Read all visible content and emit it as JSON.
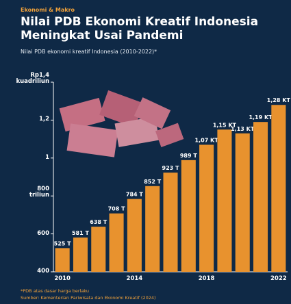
{
  "chart_data": {
    "type": "bar",
    "kicker": "Ekonomi & Makro",
    "title": "Nilai PDB Ekonomi Kreatif Indonesia Meningkat Usai Pandemi",
    "subtitle": "Nilai PDB ekonomi kreatif Indonesia (2010-2022)*",
    "categories": [
      "2010",
      null,
      null,
      null,
      "2014",
      null,
      null,
      null,
      "2018",
      null,
      null,
      null,
      "2022"
    ],
    "values": [
      525,
      581,
      638,
      708,
      784,
      852,
      923,
      989,
      1070,
      1150,
      1130,
      1190,
      1280
    ],
    "value_labels": [
      "525 T",
      "581 T",
      "638 T",
      "708 T",
      "784 T",
      "852 T",
      "923 T",
      "989 T",
      "1,07 KT",
      "1,15 KT",
      "1,13 KT",
      "1,19 KT",
      "1,28 KT"
    ],
    "color": "#e8922e",
    "ylim": [
      400,
      1400
    ],
    "yticks": [
      400,
      600,
      {
        "value": 800,
        "label": "800\ntriliun"
      },
      {
        "value": 1000,
        "label": "1"
      },
      {
        "value": 1200,
        "label": "1,2"
      },
      {
        "value": 1400,
        "label": "Rp1,4\nkuadriliun"
      }
    ],
    "grid": false,
    "notes": [
      "*PDB atas dasar harga berlaku",
      "Sumber: Kementerian Pariwisata dan Ekonomi Kreatif (2024)"
    ]
  }
}
